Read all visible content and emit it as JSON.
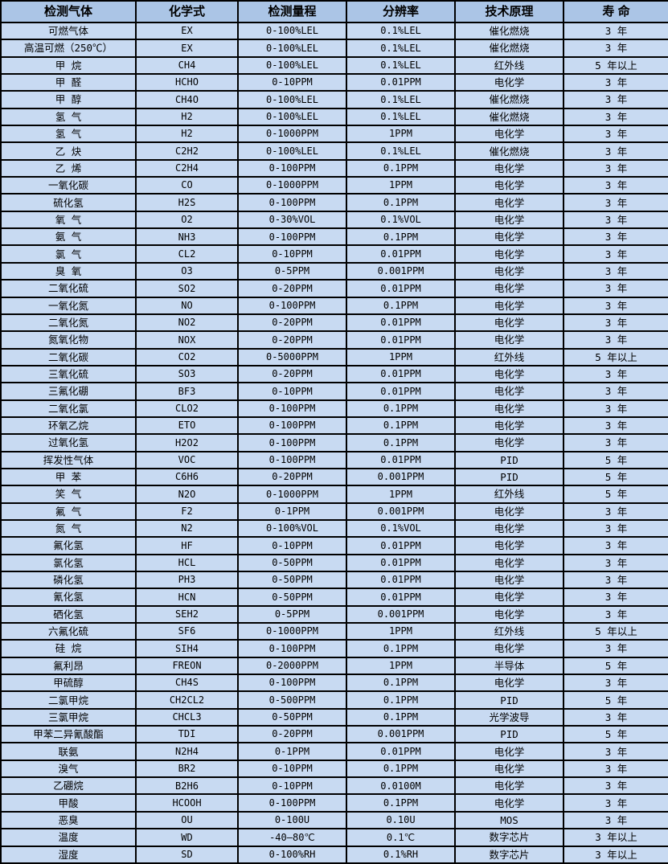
{
  "table": {
    "headers": [
      "检测气体",
      "化学式",
      "检测量程",
      "分辨率",
      "技术原理",
      "寿 命"
    ],
    "rows": [
      [
        "可燃气体",
        "EX",
        "0-100%LEL",
        "0.1%LEL",
        "催化燃烧",
        "3 年"
      ],
      [
        "高温可燃（250℃）",
        "EX",
        "0-100%LEL",
        "0.1%LEL",
        "催化燃烧",
        "3 年"
      ],
      [
        "甲 烷",
        "CH4",
        "0-100%LEL",
        "0.1%LEL",
        "红外线",
        "5 年以上"
      ],
      [
        "甲 醛",
        "HCHO",
        "0-10PPM",
        "0.01PPM",
        "电化学",
        "3 年"
      ],
      [
        "甲 醇",
        "CH4O",
        "0-100%LEL",
        "0.1%LEL",
        "催化燃烧",
        "3 年"
      ],
      [
        "氢 气",
        "H2",
        "0-100%LEL",
        "0.1%LEL",
        "催化燃烧",
        "3 年"
      ],
      [
        "氢 气",
        "H2",
        "0-1000PPM",
        "1PPM",
        "电化学",
        "3 年"
      ],
      [
        "乙 炔",
        "C2H2",
        "0-100%LEL",
        "0.1%LEL",
        "催化燃烧",
        "3 年"
      ],
      [
        "乙 烯",
        "C2H4",
        "0-100PPM",
        "0.1PPM",
        "电化学",
        "3 年"
      ],
      [
        "一氧化碳",
        "CO",
        "0-1000PPM",
        "1PPM",
        "电化学",
        "3 年"
      ],
      [
        "硫化氢",
        "H2S",
        "0-100PPM",
        "0.1PPM",
        "电化学",
        "3 年"
      ],
      [
        "氧 气",
        "O2",
        "0-30%VOL",
        "0.1%VOL",
        "电化学",
        "3 年"
      ],
      [
        "氨 气",
        "NH3",
        "0-100PPM",
        "0.1PPM",
        "电化学",
        "3 年"
      ],
      [
        "氯 气",
        "CL2",
        "0-10PPM",
        "0.01PPM",
        "电化学",
        "3 年"
      ],
      [
        "臭 氧",
        "O3",
        "0-5PPM",
        "0.001PPM",
        "电化学",
        "3 年"
      ],
      [
        "二氧化硫",
        "SO2",
        "0-20PPM",
        "0.01PPM",
        "电化学",
        "3 年"
      ],
      [
        "一氧化氮",
        "NO",
        "0-100PPM",
        "0.1PPM",
        "电化学",
        "3 年"
      ],
      [
        "二氧化氮",
        "NO2",
        "0-20PPM",
        "0.01PPM",
        "电化学",
        "3 年"
      ],
      [
        "氮氧化物",
        "NOX",
        "0-20PPM",
        "0.01PPM",
        "电化学",
        "3 年"
      ],
      [
        "二氧化碳",
        "CO2",
        "0-5000PPM",
        "1PPM",
        "红外线",
        "5 年以上"
      ],
      [
        "三氧化硫",
        "SO3",
        "0-20PPM",
        "0.01PPM",
        "电化学",
        "3 年"
      ],
      [
        "三氟化硼",
        "BF3",
        "0-10PPM",
        "0.01PPM",
        "电化学",
        "3 年"
      ],
      [
        "二氧化氯",
        "CLO2",
        "0-100PPM",
        "0.1PPM",
        "电化学",
        "3 年"
      ],
      [
        "环氧乙烷",
        "ETO",
        "0-100PPM",
        "0.1PPM",
        "电化学",
        "3 年"
      ],
      [
        "过氧化氢",
        "H2O2",
        "0-100PPM",
        "0.1PPM",
        "电化学",
        "3 年"
      ],
      [
        "挥发性气体",
        "VOC",
        "0-100PPM",
        "0.01PPM",
        "PID",
        "5 年"
      ],
      [
        "甲 苯",
        "C6H6",
        "0-20PPM",
        "0.001PPM",
        "PID",
        "5 年"
      ],
      [
        "笑 气",
        "N2O",
        "0-1000PPM",
        "1PPM",
        "红外线",
        "5 年"
      ],
      [
        "氟 气",
        "F2",
        "0-1PPM",
        "0.001PPM",
        "电化学",
        "3 年"
      ],
      [
        "氮 气",
        "N2",
        "0-100%VOL",
        "0.1%VOL",
        "电化学",
        "3 年"
      ],
      [
        "氟化氢",
        "HF",
        "0-10PPM",
        "0.01PPM",
        "电化学",
        "3 年"
      ],
      [
        "氯化氢",
        "HCL",
        "0-50PPM",
        "0.01PPM",
        "电化学",
        "3 年"
      ],
      [
        "磷化氢",
        "PH3",
        "0-50PPM",
        "0.01PPM",
        "电化学",
        "3 年"
      ],
      [
        "氰化氢",
        "HCN",
        "0-50PPM",
        "0.01PPM",
        "电化学",
        "3 年"
      ],
      [
        "硒化氢",
        "SEH2",
        "0-5PPM",
        "0.001PPM",
        "电化学",
        "3 年"
      ],
      [
        "六氟化硫",
        "SF6",
        "0-1000PPM",
        "1PPM",
        "红外线",
        "5 年以上"
      ],
      [
        "硅 烷",
        "SIH4",
        "0-100PPM",
        "0.1PPM",
        "电化学",
        "3 年"
      ],
      [
        "氟利昂",
        "FREON",
        "0-2000PPM",
        "1PPM",
        "半导体",
        "5 年"
      ],
      [
        "甲硫醇",
        "CH4S",
        "0-100PPM",
        "0.1PPM",
        "电化学",
        "3 年"
      ],
      [
        "二氯甲烷",
        "CH2CL2",
        "0-500PPM",
        "0.1PPM",
        "PID",
        "5 年"
      ],
      [
        "三氯甲烷",
        "CHCL3",
        "0-50PPM",
        "0.1PPM",
        "光学波导",
        "3 年"
      ],
      [
        "甲苯二异氰酸酯",
        "TDI",
        "0-20PPM",
        "0.001PPM",
        "PID",
        "5 年"
      ],
      [
        "联氨",
        "N2H4",
        "0-1PPM",
        "0.01PPM",
        "电化学",
        "3 年"
      ],
      [
        "溴气",
        "BR2",
        "0-10PPM",
        "0.1PPM",
        "电化学",
        "3 年"
      ],
      [
        "乙硼烷",
        "B2H6",
        "0-10PPM",
        "0.0100M",
        "电化学",
        "3 年"
      ],
      [
        "甲酸",
        "HCOOH",
        "0-100PPM",
        "0.1PPM",
        "电化学",
        "3 年"
      ],
      [
        "恶臭",
        "OU",
        "0-100U",
        "0.10U",
        "MOS",
        "3 年"
      ],
      [
        "温度",
        "WD",
        "-40—80℃",
        "0.1℃",
        "数字芯片",
        "3 年以上"
      ],
      [
        "湿度",
        "SD",
        "0-100%RH",
        "0.1%RH",
        "数字芯片",
        "3 年以上"
      ]
    ],
    "column_semantics": [
      "gas-name",
      "chemical-formula",
      "detection-range",
      "resolution",
      "technology-principle",
      "lifespan"
    ]
  },
  "colors": {
    "header_bg": "#abc5e6",
    "row_bg": "#c8daf2",
    "border": "#000000",
    "text": "#000000"
  }
}
